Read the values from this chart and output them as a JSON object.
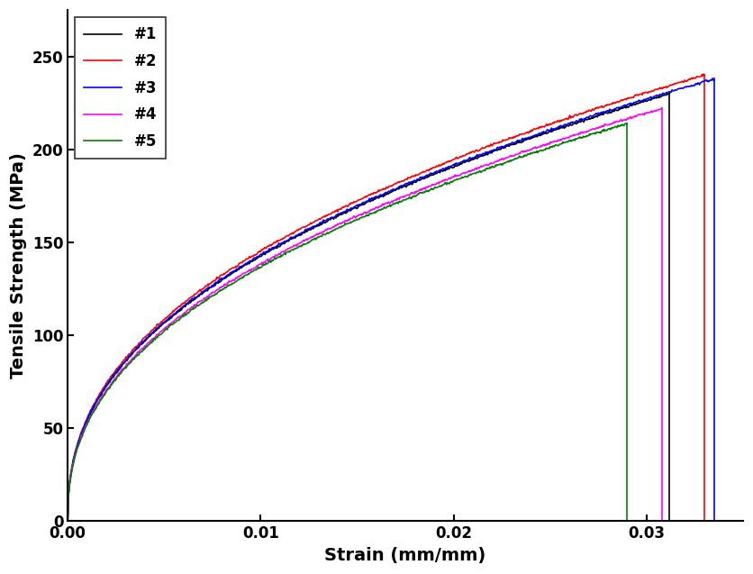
{
  "xlabel": "Strain (mm/mm)",
  "ylabel": "Tensile Strength (MPa)",
  "xlim": [
    0.0,
    0.035
  ],
  "ylim": [
    0,
    275
  ],
  "xticks": [
    0.0,
    0.01,
    0.02,
    0.03
  ],
  "yticks": [
    0,
    50,
    100,
    150,
    200,
    250
  ],
  "series": [
    {
      "label": "#1",
      "color": "black",
      "peak_strain": 0.0312,
      "peak_stress": 230.0,
      "alpha": 0.42
    },
    {
      "label": "#2",
      "color": "red",
      "peak_strain": 0.033,
      "peak_stress": 240.0,
      "alpha": 0.42
    },
    {
      "label": "#3",
      "color": "blue",
      "peak_strain": 0.0335,
      "peak_stress": 238.0,
      "alpha": 0.42
    },
    {
      "label": "#4",
      "color": "magenta",
      "peak_strain": 0.0308,
      "peak_stress": 222.0,
      "alpha": 0.42
    },
    {
      "label": "#5",
      "color": "green",
      "peak_strain": 0.029,
      "peak_stress": 214.0,
      "alpha": 0.42
    }
  ],
  "legend_loc": "upper left",
  "linewidth": 1.2,
  "bg_color": "#ffffff",
  "noise_std": 0.3,
  "n_points": 800
}
